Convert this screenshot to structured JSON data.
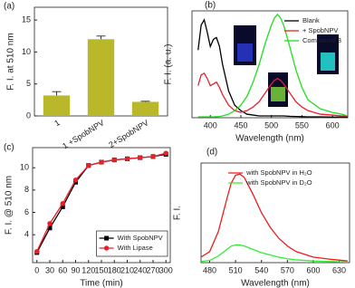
{
  "chart_data": [
    {
      "type": "bar",
      "label": "(a)",
      "ylabel": "F. I. at 510 nm",
      "categories": [
        "1",
        "1 +SpobNPV",
        "2+SpobNPV"
      ],
      "values": [
        3.2,
        12.0,
        2.2
      ],
      "errors": [
        0.6,
        0.5,
        0.1
      ],
      "color": "#b8b82a",
      "ylim": [
        0,
        17
      ],
      "yticks": [
        0,
        5,
        10,
        15
      ]
    },
    {
      "type": "line",
      "label": "(b)",
      "xlabel": "Wavelength (nm)",
      "ylabel": "F. I. (a. u.)",
      "x": [
        380,
        385,
        390,
        395,
        400,
        405,
        410,
        415,
        420,
        430,
        440,
        450,
        460,
        470,
        480,
        490,
        500,
        505,
        510,
        515,
        520,
        530,
        540,
        550,
        560,
        580,
        600,
        615,
        625
      ],
      "series": [
        {
          "name": "Blank",
          "color": "#000000",
          "values": [
            38,
            52,
            55,
            48,
            40,
            44,
            45,
            40,
            30,
            15,
            7,
            4,
            2,
            1.5,
            1,
            1,
            1,
            1,
            1,
            1,
            1,
            0.8,
            0.7,
            0.6,
            0.5,
            0.5,
            0.4,
            0.4,
            0.4
          ]
        },
        {
          "name": "+ SpobNPV",
          "color": "#e8202a",
          "values": [
            18,
            24,
            25,
            22,
            18,
            19,
            20,
            17,
            13,
            7,
            4,
            3,
            4,
            6,
            9,
            14,
            19,
            21,
            22,
            21,
            19,
            14,
            9,
            6,
            4,
            2,
            1.5,
            1,
            1
          ]
        },
        {
          "name": "Compound 3",
          "color": "#22dd22",
          "values": [
            0.5,
            0.5,
            0.5,
            0.5,
            0.5,
            0.5,
            0.6,
            0.7,
            1,
            2,
            4,
            7,
            12,
            20,
            30,
            42,
            52,
            56,
            58,
            56,
            52,
            40,
            27,
            17,
            10,
            5,
            3,
            2,
            1
          ]
        }
      ],
      "xlim": [
        370,
        625
      ],
      "xticks": [
        400,
        450,
        500,
        550,
        600
      ],
      "ylim": [
        0,
        60
      ],
      "legend": "upper right"
    },
    {
      "type": "line",
      "label": "(c)",
      "xlabel": "Time (min)",
      "ylabel": "F. I. @ 510 nm",
      "x": [
        0,
        30,
        60,
        90,
        120,
        150,
        180,
        210,
        240,
        270,
        300
      ],
      "series": [
        {
          "name": "With SpobNPV",
          "color": "#000000",
          "marker": "square",
          "values": [
            2.4,
            4.6,
            6.5,
            8.7,
            10.2,
            10.5,
            10.7,
            10.8,
            10.9,
            11.0,
            11.2
          ]
        },
        {
          "name": "With Lipase",
          "color": "#e8202a",
          "marker": "circle",
          "values": [
            2.5,
            5.0,
            6.8,
            8.9,
            10.2,
            10.5,
            10.7,
            10.8,
            10.9,
            11.0,
            11.3
          ]
        }
      ],
      "xlim": [
        -10,
        310
      ],
      "xticks": [
        0,
        30,
        60,
        90,
        120,
        150,
        180,
        210,
        240,
        270,
        300
      ],
      "ylim": [
        1.5,
        11.8
      ],
      "yticks": [
        4,
        6,
        8,
        10
      ],
      "legend": "lower right",
      "legend_frame": true
    },
    {
      "type": "line",
      "label": "(d)",
      "xlabel": "Wavelength (nm)",
      "ylabel": "F. I.",
      "x": [
        470,
        480,
        490,
        500,
        505,
        510,
        515,
        520,
        530,
        540,
        550,
        560,
        570,
        580,
        600,
        620,
        640
      ],
      "series": [
        {
          "name": "with SpobNPV in H₂O",
          "color": "#ee1c1c",
          "values": [
            5,
            10,
            28,
            58,
            72,
            79,
            80,
            77,
            62,
            45,
            32,
            22,
            15,
            10,
            5,
            3,
            1.5
          ]
        },
        {
          "name": "with SpobNPV in D₂O",
          "color": "#33ee33",
          "values": [
            1,
            2,
            6,
            12,
            15,
            16,
            16,
            15,
            12,
            9,
            7,
            5,
            3.5,
            2.5,
            1.5,
            1,
            0.5
          ]
        }
      ],
      "xlim": [
        470,
        642
      ],
      "xticks": [
        480,
        510,
        540,
        570,
        600,
        630
      ],
      "ylim": [
        0,
        90
      ],
      "legend": "upper center"
    }
  ]
}
